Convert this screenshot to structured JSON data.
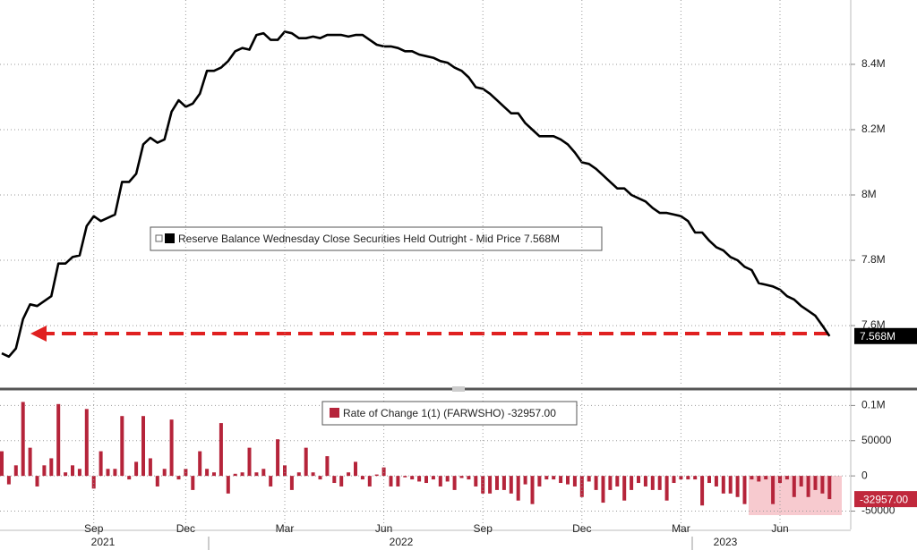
{
  "chart_data": [
    {
      "type": "line",
      "grid": true,
      "ylim": [
        7.414,
        8.597
      ],
      "yticks": [
        {
          "value": 7.6,
          "label": "7.6M"
        },
        {
          "value": 7.8,
          "label": "7.8M"
        },
        {
          "value": 8,
          "label": "8M"
        },
        {
          "value": 8.2,
          "label": "8.2M"
        },
        {
          "value": 8.4,
          "label": "8.4M"
        }
      ],
      "series": [
        {
          "name": "Reserve Balance Wednesday Close Securities Held Outright - Mid Price",
          "color": "#000000",
          "last_label": "7.568M",
          "values": [
            7.515,
            7.505,
            7.53,
            7.62,
            7.665,
            7.66,
            7.675,
            7.69,
            7.79,
            7.79,
            7.81,
            7.815,
            7.905,
            7.935,
            7.92,
            7.93,
            7.94,
            8.04,
            8.04,
            8.065,
            8.155,
            8.175,
            8.16,
            8.17,
            8.255,
            8.29,
            8.27,
            8.28,
            8.31,
            8.38,
            8.38,
            8.39,
            8.41,
            8.44,
            8.45,
            8.445,
            8.49,
            8.495,
            8.475,
            8.475,
            8.5,
            8.495,
            8.48,
            8.48,
            8.485,
            8.48,
            8.49,
            8.49,
            8.49,
            8.485,
            8.49,
            8.49,
            8.475,
            8.46,
            8.455,
            8.455,
            8.45,
            8.44,
            8.44,
            8.43,
            8.425,
            8.42,
            8.41,
            8.405,
            8.39,
            8.38,
            8.36,
            8.33,
            8.325,
            8.31,
            8.29,
            8.27,
            8.25,
            8.25,
            8.22,
            8.2,
            8.18,
            8.18,
            8.18,
            8.17,
            8.155,
            8.13,
            8.1,
            8.095,
            8.08,
            8.06,
            8.04,
            8.02,
            8.02,
            8.0,
            7.99,
            7.98,
            7.96,
            7.945,
            7.945,
            7.94,
            7.935,
            7.92,
            7.885,
            7.885,
            7.86,
            7.84,
            7.83,
            7.81,
            7.8,
            7.78,
            7.77,
            7.73,
            7.725,
            7.72,
            7.71,
            7.69,
            7.68,
            7.66,
            7.645,
            7.63,
            7.6,
            7.568
          ]
        }
      ]
    },
    {
      "type": "bar",
      "grid": true,
      "ylim": [
        -76000,
        117000
      ],
      "yticks": [
        {
          "value": -50000,
          "label": "-50000"
        },
        0,
        50000,
        {
          "value": 100000,
          "label": "0.1M"
        }
      ],
      "categories": [
        null,
        null,
        null,
        null,
        null,
        null,
        null,
        null,
        null,
        null,
        null,
        null,
        null,
        "Sep",
        null,
        null,
        null,
        null,
        null,
        null,
        null,
        null,
        null,
        null,
        null,
        null,
        "Dec",
        null,
        null,
        null,
        null,
        null,
        null,
        null,
        null,
        null,
        null,
        null,
        null,
        null,
        "Mar",
        null,
        null,
        null,
        null,
        null,
        null,
        null,
        null,
        null,
        null,
        null,
        null,
        null,
        "Jun",
        null,
        null,
        null,
        null,
        null,
        null,
        null,
        null,
        null,
        null,
        null,
        null,
        null,
        "Sep",
        null,
        null,
        null,
        null,
        null,
        null,
        null,
        null,
        null,
        null,
        null,
        null,
        null,
        "Dec",
        null,
        null,
        null,
        null,
        null,
        null,
        null,
        null,
        null,
        null,
        null,
        null,
        null,
        "Mar",
        null,
        null,
        null,
        null,
        null,
        null,
        null,
        null,
        null,
        null,
        null,
        null,
        null,
        "Jun",
        null,
        null,
        null,
        null,
        null,
        null,
        null
      ],
      "years": [
        "2021",
        "2022",
        "2023"
      ],
      "series": [
        {
          "name": "Rate of Change 1(1) (FARWSHO)",
          "color": "#b5243a",
          "last_label": "-32957.00",
          "values": [
            35000,
            -12000,
            15000,
            105000,
            40000,
            -15000,
            15000,
            25000,
            102000,
            5000,
            15000,
            10000,
            95000,
            -18000,
            35000,
            10000,
            10000,
            85000,
            -5000,
            20000,
            85000,
            25000,
            -15000,
            10000,
            80000,
            -5000,
            10000,
            -20000,
            35000,
            10000,
            5000,
            75000,
            -25000,
            3000,
            5000,
            40000,
            5000,
            10000,
            -15000,
            52000,
            15000,
            -20000,
            5000,
            40000,
            5000,
            -5000,
            28000,
            -10000,
            -15000,
            5000,
            20000,
            -5000,
            -15000,
            2000,
            12000,
            -15000,
            -15000,
            -2000,
            -5000,
            -8000,
            -10000,
            -5000,
            -15000,
            -8000,
            -20000,
            -3000,
            -5000,
            -15000,
            -25000,
            -25000,
            -20000,
            -20000,
            -25000,
            -35000,
            -12000,
            -40000,
            -15000,
            -5000,
            -5000,
            -10000,
            -12000,
            -15000,
            -30000,
            -8000,
            -20000,
            -38000,
            -20000,
            -15000,
            -35000,
            -20000,
            -10000,
            -15000,
            -20000,
            -20000,
            -35000,
            -10000,
            -5000,
            -5000,
            -5000,
            -42000,
            -10000,
            -15000,
            -25000,
            -25000,
            -30000,
            -40000,
            -5000,
            -8000,
            -5000,
            -40000,
            -10000,
            -5000,
            -30000,
            -15000,
            -30000,
            -20000,
            -25000,
            -32957
          ]
        }
      ]
    }
  ]
}
